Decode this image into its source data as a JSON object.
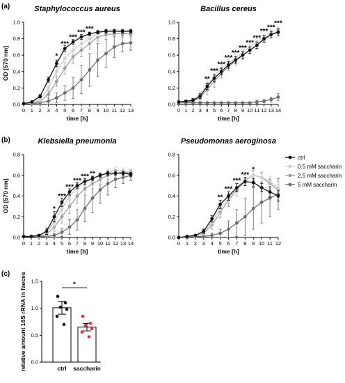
{
  "panel_labels": [
    "(a)",
    "(b)",
    "(c)"
  ],
  "legend": {
    "entries": [
      {
        "name": "ctrl",
        "color": "#111111"
      },
      {
        "name": "0.5 mM saccharin",
        "color": "#cfcfcf"
      },
      {
        "name": "2.5 mM saccharin",
        "color": "#9e9e9e"
      },
      {
        "name": "5 mM saccharin",
        "color": "#6e6e6e"
      }
    ]
  },
  "chart_data": [
    {
      "type": "line",
      "title": "Staphylococcus aureus",
      "xlabel": "time [h]",
      "ylabel": "OD [570 nm]",
      "xlim": [
        0,
        13
      ],
      "ylim": [
        0,
        1.0
      ],
      "xticks": [
        "0",
        "1",
        "2",
        "3",
        "4",
        "5",
        "6",
        "7",
        "8",
        "9",
        "10",
        "11",
        "12",
        "13"
      ],
      "yticks": [
        "0.0",
        "0.2",
        "0.4",
        "0.6",
        "0.8",
        "1.0"
      ],
      "x": [
        0,
        1,
        2,
        3,
        4,
        5,
        6,
        7,
        8,
        9,
        10,
        11,
        12,
        13
      ],
      "series": [
        {
          "name": "ctrl",
          "color": "#111111",
          "values": [
            0.01,
            0.03,
            0.1,
            0.3,
            0.5,
            0.68,
            0.76,
            0.82,
            0.86,
            0.88,
            0.89,
            0.89,
            0.89,
            0.89
          ],
          "err": [
            0.005,
            0.01,
            0.02,
            0.03,
            0.04,
            0.04,
            0.03,
            0.03,
            0.02,
            0.02,
            0.02,
            0.02,
            0.02,
            0.02
          ]
        },
        {
          "name": "0.5 mM saccharin",
          "color": "#cfcfcf",
          "values": [
            0.01,
            0.02,
            0.06,
            0.2,
            0.4,
            0.56,
            0.66,
            0.74,
            0.8,
            0.86,
            0.9,
            0.91,
            0.9,
            0.9
          ],
          "err": [
            0.005,
            0.01,
            0.02,
            0.03,
            0.05,
            0.05,
            0.05,
            0.05,
            0.04,
            0.03,
            0.02,
            0.02,
            0.02,
            0.02
          ]
        },
        {
          "name": "2.5 mM saccharin",
          "color": "#9e9e9e",
          "values": [
            0.01,
            0.02,
            0.04,
            0.12,
            0.28,
            0.44,
            0.58,
            0.66,
            0.74,
            0.82,
            0.85,
            0.86,
            0.86,
            0.86
          ],
          "err": [
            0.005,
            0.01,
            0.02,
            0.04,
            0.06,
            0.07,
            0.08,
            0.08,
            0.07,
            0.05,
            0.04,
            0.04,
            0.04,
            0.04
          ]
        },
        {
          "name": "5 mM saccharin",
          "color": "#6e6e6e",
          "values": [
            0.01,
            0.01,
            0.02,
            0.04,
            0.08,
            0.14,
            0.2,
            0.3,
            0.42,
            0.54,
            0.62,
            0.7,
            0.74,
            0.75
          ],
          "err": [
            0.005,
            0.01,
            0.02,
            0.04,
            0.06,
            0.09,
            0.13,
            0.17,
            0.2,
            0.2,
            0.17,
            0.13,
            0.1,
            0.09
          ]
        }
      ],
      "annotations": [
        {
          "x": 4,
          "y": 0.58,
          "text": "*"
        },
        {
          "x": 5,
          "y": 0.73,
          "text": "***"
        },
        {
          "x": 6,
          "y": 0.81,
          "text": "***"
        },
        {
          "x": 7,
          "y": 0.87,
          "text": "***"
        },
        {
          "x": 8,
          "y": 0.91,
          "text": "***"
        }
      ]
    },
    {
      "type": "line",
      "title": "Bacillus cereus",
      "xlabel": "time [h]",
      "ylabel": "",
      "xlim": [
        0,
        14
      ],
      "ylim": [
        0,
        1.0
      ],
      "xticks": [
        "0",
        "1",
        "2",
        "3",
        "4",
        "5",
        "6",
        "7",
        "8",
        "9",
        "10",
        "11",
        "12",
        "13",
        "14"
      ],
      "yticks": [
        "0.0",
        "0.2",
        "0.4",
        "0.6",
        "0.8",
        "1.0"
      ],
      "x": [
        0,
        1,
        2,
        3,
        4,
        5,
        6,
        7,
        8,
        9,
        10,
        11,
        12,
        13,
        14
      ],
      "series": [
        {
          "name": "ctrl",
          "color": "#111111",
          "values": [
            0.03,
            0.04,
            0.05,
            0.1,
            0.22,
            0.32,
            0.4,
            0.48,
            0.54,
            0.6,
            0.66,
            0.72,
            0.8,
            0.85,
            0.88
          ],
          "err": [
            0.01,
            0.01,
            0.02,
            0.03,
            0.04,
            0.04,
            0.04,
            0.04,
            0.04,
            0.04,
            0.04,
            0.04,
            0.04,
            0.04,
            0.04
          ]
        },
        {
          "name": "0.5 mM saccharin",
          "color": "#cfcfcf",
          "values": [
            0.03,
            0.04,
            0.06,
            0.12,
            0.25,
            0.35,
            0.44,
            0.5,
            0.57,
            0.63,
            0.7,
            0.76,
            0.83,
            0.88,
            0.92
          ],
          "err": [
            0.01,
            0.01,
            0.02,
            0.04,
            0.06,
            0.06,
            0.05,
            0.05,
            0.05,
            0.04,
            0.04,
            0.04,
            0.04,
            0.03,
            0.03
          ]
        },
        {
          "name": "2.5 mM saccharin",
          "color": "#9e9e9e",
          "values": [
            0.02,
            0.03,
            0.04,
            0.08,
            0.18,
            0.28,
            0.38,
            0.46,
            0.53,
            0.6,
            0.66,
            0.72,
            0.79,
            0.85,
            0.89
          ],
          "err": [
            0.01,
            0.01,
            0.02,
            0.04,
            0.06,
            0.07,
            0.06,
            0.05,
            0.05,
            0.05,
            0.04,
            0.04,
            0.04,
            0.04,
            0.03
          ]
        },
        {
          "name": "5 mM saccharin",
          "color": "#6e6e6e",
          "values": [
            0.02,
            0.02,
            0.02,
            0.02,
            0.02,
            0.02,
            0.02,
            0.02,
            0.02,
            0.02,
            0.02,
            0.03,
            0.04,
            0.06,
            0.09
          ],
          "err": [
            0.01,
            0.01,
            0.01,
            0.01,
            0.01,
            0.01,
            0.01,
            0.01,
            0.01,
            0.01,
            0.01,
            0.02,
            0.02,
            0.03,
            0.04
          ]
        }
      ],
      "annotations": [
        {
          "x": 4,
          "y": 0.3,
          "text": "**"
        },
        {
          "x": 5,
          "y": 0.4,
          "text": "***"
        },
        {
          "x": 6,
          "y": 0.48,
          "text": "***"
        },
        {
          "x": 7,
          "y": 0.56,
          "text": "***"
        },
        {
          "x": 8,
          "y": 0.62,
          "text": "***"
        },
        {
          "x": 9,
          "y": 0.68,
          "text": "***"
        },
        {
          "x": 10,
          "y": 0.74,
          "text": "***"
        },
        {
          "x": 11,
          "y": 0.8,
          "text": "***"
        },
        {
          "x": 12,
          "y": 0.88,
          "text": "***"
        },
        {
          "x": 13,
          "y": 0.93,
          "text": "***"
        },
        {
          "x": 14,
          "y": 0.98,
          "text": "***"
        }
      ]
    },
    {
      "type": "line",
      "title": "Klebsiella pneumonia",
      "xlabel": "time [h]",
      "ylabel": "OD [570 nm]",
      "xlim": [
        0,
        14
      ],
      "ylim": [
        0,
        0.8
      ],
      "xticks": [
        "0",
        "1",
        "2",
        "3",
        "4",
        "5",
        "6",
        "7",
        "8",
        "9",
        "10",
        "11",
        "12",
        "13",
        "14"
      ],
      "yticks": [
        "0.0",
        "0.2",
        "0.4",
        "0.6",
        "0.8"
      ],
      "x": [
        0,
        1,
        2,
        3,
        4,
        5,
        6,
        7,
        8,
        9,
        10,
        11,
        12,
        13,
        14
      ],
      "series": [
        {
          "name": "ctrl",
          "color": "#111111",
          "values": [
            0.01,
            0.01,
            0.02,
            0.06,
            0.2,
            0.34,
            0.44,
            0.5,
            0.54,
            0.57,
            0.6,
            0.62,
            0.62,
            0.62,
            0.61
          ],
          "err": [
            0.005,
            0.005,
            0.01,
            0.03,
            0.05,
            0.04,
            0.03,
            0.03,
            0.03,
            0.02,
            0.02,
            0.02,
            0.02,
            0.02,
            0.02
          ]
        },
        {
          "name": "0.5 mM saccharin",
          "color": "#cfcfcf",
          "values": [
            0.01,
            0.01,
            0.02,
            0.05,
            0.15,
            0.28,
            0.4,
            0.48,
            0.53,
            0.57,
            0.6,
            0.63,
            0.65,
            0.64,
            0.63
          ],
          "err": [
            0.005,
            0.005,
            0.01,
            0.03,
            0.05,
            0.05,
            0.04,
            0.04,
            0.03,
            0.03,
            0.03,
            0.03,
            0.03,
            0.03,
            0.03
          ]
        },
        {
          "name": "2.5 mM saccharin",
          "color": "#9e9e9e",
          "values": [
            0.01,
            0.01,
            0.01,
            0.03,
            0.1,
            0.2,
            0.3,
            0.4,
            0.47,
            0.52,
            0.56,
            0.6,
            0.62,
            0.63,
            0.62
          ],
          "err": [
            0.005,
            0.005,
            0.01,
            0.02,
            0.04,
            0.06,
            0.07,
            0.07,
            0.06,
            0.05,
            0.05,
            0.04,
            0.04,
            0.04,
            0.04
          ]
        },
        {
          "name": "5 mM saccharin",
          "color": "#6e6e6e",
          "values": [
            0.01,
            0.01,
            0.01,
            0.01,
            0.02,
            0.05,
            0.1,
            0.17,
            0.28,
            0.38,
            0.46,
            0.52,
            0.56,
            0.58,
            0.6
          ],
          "err": [
            0.005,
            0.005,
            0.005,
            0.01,
            0.02,
            0.04,
            0.07,
            0.1,
            0.13,
            0.14,
            0.13,
            0.11,
            0.08,
            0.06,
            0.05
          ]
        }
      ],
      "annotations": [
        {
          "x": 4,
          "y": 0.27,
          "text": "*"
        },
        {
          "x": 5,
          "y": 0.39,
          "text": "***"
        },
        {
          "x": 6,
          "y": 0.48,
          "text": "***"
        },
        {
          "x": 7,
          "y": 0.54,
          "text": "***"
        },
        {
          "x": 8,
          "y": 0.58,
          "text": "***"
        },
        {
          "x": 9,
          "y": 0.61,
          "text": "**"
        }
      ]
    },
    {
      "type": "line",
      "title": "Pseudomonas aeroginosa",
      "xlabel": "time [h]",
      "ylabel": "",
      "xlim": [
        0,
        12
      ],
      "ylim": [
        0,
        0.8
      ],
      "xticks": [
        "0",
        "1",
        "2",
        "3",
        "4",
        "5",
        "6",
        "7",
        "8",
        "9",
        "10",
        "11",
        "12"
      ],
      "yticks": [
        "0.0",
        "0.2",
        "0.4",
        "0.6",
        "0.8"
      ],
      "x": [
        0,
        1,
        2,
        3,
        4,
        5,
        6,
        7,
        8,
        9,
        10,
        11,
        12
      ],
      "series": [
        {
          "name": "ctrl",
          "color": "#111111",
          "values": [
            0.0,
            0.01,
            0.02,
            0.06,
            0.18,
            0.32,
            0.4,
            0.48,
            0.54,
            0.53,
            0.48,
            0.44,
            0.4
          ],
          "err": [
            0.005,
            0.005,
            0.01,
            0.02,
            0.03,
            0.04,
            0.04,
            0.04,
            0.04,
            0.04,
            0.04,
            0.05,
            0.05
          ]
        },
        {
          "name": "0.5 mM saccharin",
          "color": "#cfcfcf",
          "values": [
            0.0,
            0.01,
            0.02,
            0.05,
            0.15,
            0.28,
            0.38,
            0.48,
            0.56,
            0.6,
            0.58,
            0.54,
            0.48
          ],
          "err": [
            0.005,
            0.005,
            0.01,
            0.02,
            0.04,
            0.05,
            0.05,
            0.05,
            0.04,
            0.04,
            0.04,
            0.05,
            0.05
          ]
        },
        {
          "name": "2.5 mM saccharin",
          "color": "#9e9e9e",
          "values": [
            0.0,
            0.01,
            0.01,
            0.04,
            0.12,
            0.24,
            0.36,
            0.46,
            0.55,
            0.6,
            0.58,
            0.52,
            0.46
          ],
          "err": [
            0.005,
            0.005,
            0.01,
            0.02,
            0.04,
            0.05,
            0.06,
            0.06,
            0.05,
            0.05,
            0.05,
            0.05,
            0.05
          ]
        },
        {
          "name": "5 mM saccharin",
          "color": "#6e6e6e",
          "values": [
            0.0,
            0.0,
            0.01,
            0.01,
            0.02,
            0.04,
            0.08,
            0.14,
            0.2,
            0.28,
            0.34,
            0.38,
            0.42
          ],
          "err": [
            0.005,
            0.005,
            0.005,
            0.01,
            0.02,
            0.04,
            0.08,
            0.13,
            0.18,
            0.2,
            0.2,
            0.18,
            0.15
          ]
        }
      ],
      "annotations": [
        {
          "x": 5,
          "y": 0.38,
          "text": "**"
        },
        {
          "x": 6,
          "y": 0.46,
          "text": "***"
        },
        {
          "x": 7,
          "y": 0.54,
          "text": "***"
        },
        {
          "x": 8,
          "y": 0.6,
          "text": "***"
        },
        {
          "x": 9,
          "y": 0.65,
          "text": "*"
        }
      ]
    },
    {
      "type": "bar",
      "title": "",
      "xlabel": "",
      "ylabel": "relative amount 16S rRNA in faeces",
      "ylim": [
        0,
        1.5
      ],
      "yticks": [
        "0.0",
        "0.5",
        "1.0",
        "1.5"
      ],
      "categories": [
        "ctrl",
        "saccharin"
      ],
      "values": [
        1.01,
        0.65
      ],
      "err": [
        0.12,
        0.07
      ],
      "point_colors": [
        "#111111",
        "#e0303a"
      ],
      "points": [
        [
          1.22,
          1.1,
          1.02,
          0.98,
          0.85,
          0.7
        ],
        [
          0.85,
          0.72,
          0.68,
          0.62,
          0.56,
          0.47
        ]
      ],
      "significance": {
        "between": [
          0,
          1
        ],
        "text": "*"
      }
    }
  ]
}
